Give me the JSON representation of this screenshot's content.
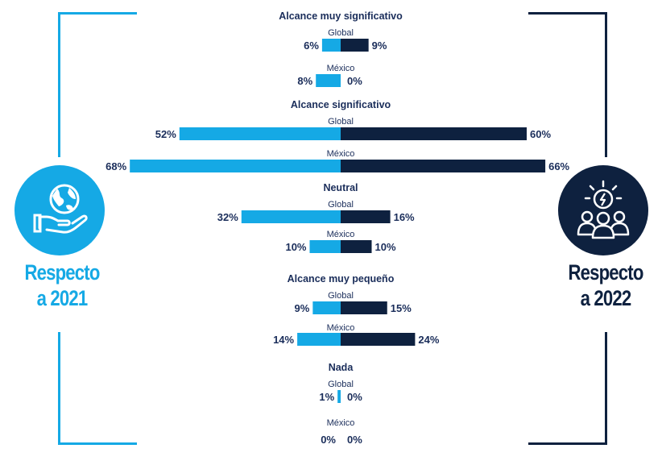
{
  "left_panel": {
    "line1": "Respecto",
    "line2": "a 2021",
    "icon": "globe-in-hand-icon",
    "color": "#15a9e5"
  },
  "right_panel": {
    "line1": "Respecto",
    "line2": "a 2022",
    "icon": "idea-team-icon",
    "color": "#0e213f"
  },
  "colors": {
    "series_2021": "#15a9e5",
    "series_2022": "#0e213f",
    "title": "#1a2d5a",
    "sublabel": "#1a2d5a"
  },
  "chart_data": {
    "type": "bar",
    "orientation": "horizontal-diverging",
    "categories": [
      "Alcance muy significativo",
      "Alcance significativo",
      "Neutral",
      "Alcance muy pequeño",
      "Nada"
    ],
    "subcategories": [
      "Global",
      "México"
    ],
    "series": [
      {
        "name": "Respecto a 2021",
        "values": [
          [
            6,
            8
          ],
          [
            52,
            68
          ],
          [
            32,
            10
          ],
          [
            9,
            14
          ],
          [
            1,
            0
          ]
        ]
      },
      {
        "name": "Respecto a 2022",
        "values": [
          [
            9,
            0
          ],
          [
            60,
            66
          ],
          [
            16,
            10
          ],
          [
            15,
            24
          ],
          [
            0,
            0
          ]
        ]
      }
    ],
    "value_suffix": "%"
  }
}
